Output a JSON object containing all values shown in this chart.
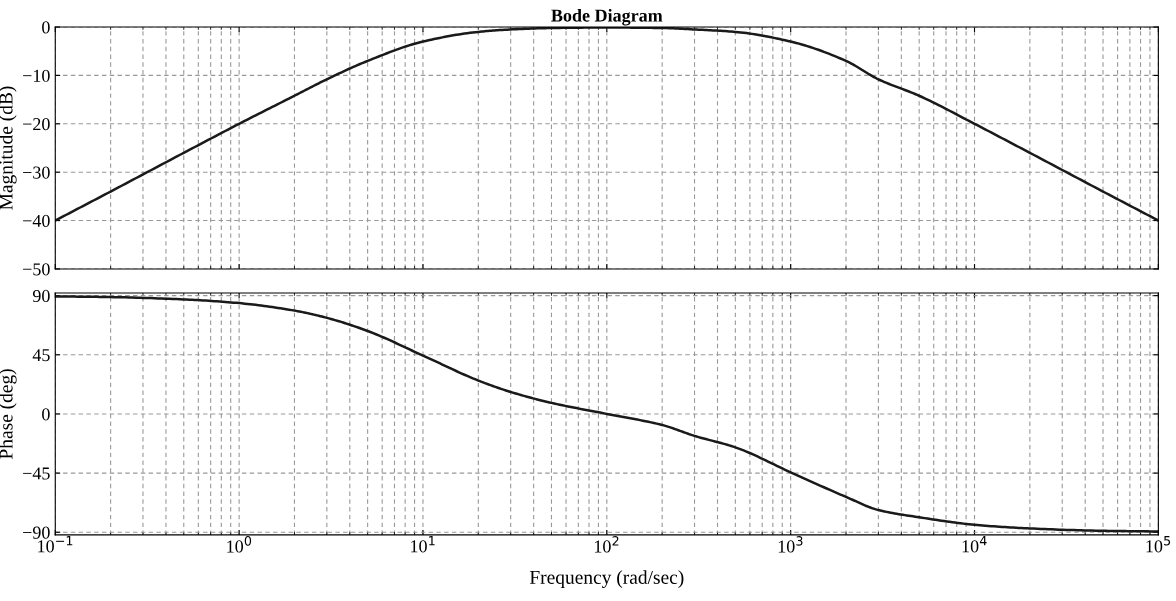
{
  "chart_data": [
    {
      "type": "line",
      "title": "Bode Diagram",
      "ylabel": "Magnitude (dB)",
      "log": "x",
      "grid": true,
      "tick_labels": "y",
      "color": "#1a1a1a",
      "x": [
        0.1,
        0.2,
        0.5,
        1,
        2,
        3,
        5,
        10,
        20,
        30,
        50,
        100,
        200,
        300,
        500,
        1000,
        2000,
        3000,
        5000,
        10000,
        20000,
        50000,
        100000
      ],
      "values": [
        -40.0,
        -34.0,
        -26.0,
        -20.0,
        -14.2,
        -10.8,
        -7.0,
        -3.0,
        -1.0,
        -0.5,
        -0.2,
        -0.1,
        -0.2,
        -0.5,
        -1.0,
        -3.0,
        -7.0,
        -10.8,
        -14.2,
        -20.0,
        -26.0,
        -34.0,
        -40.0
      ],
      "xlim": [
        0.1,
        100000
      ],
      "xticks": [
        {
          "value": 0.1,
          "label": null
        },
        {
          "value": 1,
          "label": null
        },
        {
          "value": 10,
          "label": null
        },
        {
          "value": 100,
          "label": null
        },
        {
          "value": 1000,
          "label": null
        },
        {
          "value": 10000,
          "label": null
        },
        {
          "value": 100000,
          "label": null
        }
      ],
      "ylim": [
        -50,
        0
      ],
      "yticks": [
        {
          "value": -50,
          "label": "−50"
        },
        {
          "value": -40,
          "label": "−40"
        },
        {
          "value": -30,
          "label": "−30"
        },
        {
          "value": -20,
          "label": "−20"
        },
        {
          "value": -10,
          "label": "−10"
        },
        0
      ]
    },
    {
      "type": "line",
      "xlabel": "Frequency (rad/sec)",
      "ylabel": "Phase (deg)",
      "log": "x",
      "grid": true,
      "color": "#1a1a1a",
      "x": [
        0.1,
        0.2,
        0.5,
        1,
        2,
        3,
        5,
        10,
        20,
        30,
        50,
        100,
        200,
        300,
        500,
        1000,
        2000,
        3000,
        5000,
        10000,
        20000,
        50000,
        100000
      ],
      "values": [
        89.4,
        88.9,
        87.1,
        84.3,
        78.6,
        73.1,
        63.1,
        44.4,
        25.4,
        16.7,
        8.4,
        0,
        -8.4,
        -16.7,
        -25.4,
        -44.4,
        -63.1,
        -73.1,
        -78.6,
        -84.3,
        -87.1,
        -88.9,
        -89.4
      ],
      "xlim": [
        0.1,
        100000
      ],
      "xticks": [
        {
          "value": 0.1,
          "label": "10$^{−1}$"
        },
        {
          "value": 1,
          "label": "10$^{0}$"
        },
        {
          "value": 10,
          "label": "10$^{1}$"
        },
        {
          "value": 100,
          "label": "10$^{2}$"
        },
        {
          "value": 1000,
          "label": "10$^{3}$"
        },
        {
          "value": 10000,
          "label": "10$^{4}$"
        },
        {
          "value": 100000,
          "label": "10$^{5}$"
        }
      ],
      "ylim": [
        -92,
        92
      ],
      "yticks": [
        {
          "value": -90,
          "label": "−90"
        },
        {
          "value": -45,
          "label": "−45"
        },
        0,
        45,
        90
      ]
    }
  ]
}
